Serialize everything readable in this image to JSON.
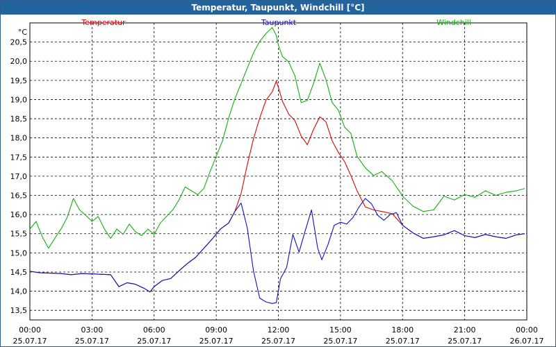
{
  "window": {
    "title": "Temperatur, Taupunkt, Windchill [°C]"
  },
  "chart_data": {
    "type": "line",
    "title": "Temperatur, Taupunkt, Windchill [°C]",
    "ylabel": "°C",
    "ylim": [
      13.25,
      21.0
    ],
    "yticks": [
      "13,5",
      "14,0",
      "14,5",
      "15,0",
      "15,5",
      "16,0",
      "16,5",
      "17,0",
      "17,5",
      "18,0",
      "18,5",
      "19,0",
      "19,5",
      "20,0",
      "20,5"
    ],
    "ytick_values": [
      13.5,
      14.0,
      14.5,
      15.0,
      15.5,
      16.0,
      16.5,
      17.0,
      17.5,
      18.0,
      18.5,
      19.0,
      19.5,
      20.0,
      20.5
    ],
    "xlim": [
      0,
      24
    ],
    "xtick_times": [
      "00:00",
      "03:00",
      "06:00",
      "09:00",
      "12:00",
      "15:00",
      "18:00",
      "21:00",
      "00:00"
    ],
    "xtick_dates": [
      "25.07.17",
      "25.07.17",
      "25.07.17",
      "25.07.17",
      "25.07.17",
      "25.07.17",
      "25.07.17",
      "25.07.17",
      "26.07.17"
    ],
    "xtick_values": [
      0,
      3,
      6,
      9,
      12,
      15,
      18,
      21,
      24
    ],
    "grid": true,
    "legend_position": "top",
    "series": [
      {
        "name": "Temperatur",
        "color": "#e00000",
        "x": [
          0,
          0.5,
          1,
          1.5,
          2,
          2.5,
          3,
          3.5,
          3.9,
          4.3,
          4.7,
          5.1,
          5.5,
          5.8,
          6.0,
          6.4,
          6.8,
          7.2,
          7.6,
          8.0,
          8.4,
          8.8,
          9.2,
          9.6,
          9.9,
          10.2,
          10.5,
          10.8,
          11.1,
          11.4,
          11.7,
          11.9,
          12.0,
          12.2,
          12.5,
          12.8,
          13.1,
          13.4,
          13.7,
          14.0,
          14.3,
          14.6,
          14.9,
          15.2,
          15.5,
          15.8,
          16.2,
          16.6,
          17.0,
          17.5,
          18.0,
          18.5,
          19.0,
          19.5,
          20.0,
          20.5,
          21.0,
          21.5,
          22.0,
          22.5,
          23.0,
          23.5,
          23.9
        ],
        "values": [
          14.52,
          14.48,
          14.47,
          14.46,
          14.43,
          14.46,
          14.45,
          14.44,
          14.43,
          14.12,
          14.22,
          14.18,
          14.08,
          13.98,
          14.12,
          14.28,
          14.33,
          14.53,
          14.72,
          14.88,
          15.12,
          15.36,
          15.62,
          15.78,
          16.08,
          16.55,
          17.3,
          17.98,
          18.52,
          18.98,
          19.2,
          19.48,
          19.32,
          18.95,
          18.62,
          18.45,
          18.05,
          17.82,
          18.22,
          18.55,
          18.42,
          17.92,
          17.62,
          17.38,
          17.02,
          16.62,
          16.2,
          16.12,
          16.08,
          16.02,
          15.72,
          15.52,
          15.38,
          15.42,
          15.47,
          15.58,
          15.45,
          15.4,
          15.48,
          15.42,
          15.38,
          15.47,
          15.5
        ]
      },
      {
        "name": "Taupunkt",
        "color": "#1010c0",
        "x": [
          0,
          0.5,
          1,
          1.5,
          2,
          2.5,
          3,
          3.5,
          3.9,
          4.3,
          4.7,
          5.1,
          5.5,
          5.8,
          6.0,
          6.4,
          6.8,
          7.2,
          7.6,
          8.0,
          8.4,
          8.8,
          9.2,
          9.6,
          9.9,
          10.2,
          10.5,
          10.8,
          11.1,
          11.4,
          11.7,
          11.9,
          12.1,
          12.4,
          12.7,
          13.0,
          13.3,
          13.6,
          13.9,
          14.1,
          14.4,
          14.7,
          15.0,
          15.3,
          15.6,
          15.9,
          16.2,
          16.5,
          16.8,
          17.1,
          17.4,
          17.7,
          18.0,
          18.5,
          19.0,
          19.5,
          20.0,
          20.5,
          21.0,
          21.5,
          22.0,
          22.5,
          23.0,
          23.5,
          23.9
        ],
        "values": [
          14.52,
          14.48,
          14.47,
          14.46,
          14.43,
          14.46,
          14.45,
          14.44,
          14.43,
          14.12,
          14.22,
          14.18,
          14.08,
          13.98,
          14.12,
          14.28,
          14.33,
          14.53,
          14.72,
          14.88,
          15.12,
          15.36,
          15.62,
          15.78,
          16.08,
          16.3,
          15.65,
          14.52,
          13.82,
          13.72,
          13.68,
          13.7,
          14.32,
          14.62,
          15.48,
          15.02,
          15.58,
          16.12,
          15.12,
          14.82,
          15.22,
          15.72,
          15.8,
          15.75,
          15.92,
          16.2,
          16.42,
          16.28,
          15.98,
          15.85,
          16.0,
          16.05,
          15.72,
          15.52,
          15.38,
          15.42,
          15.47,
          15.58,
          15.45,
          15.4,
          15.48,
          15.42,
          15.38,
          15.47,
          15.5
        ]
      },
      {
        "name": "Windchill",
        "color": "#10b010",
        "x": [
          0,
          0.3,
          0.6,
          0.9,
          1.2,
          1.5,
          1.8,
          2.1,
          2.4,
          2.7,
          3.0,
          3.3,
          3.6,
          3.9,
          4.2,
          4.5,
          4.8,
          5.1,
          5.4,
          5.7,
          6.0,
          6.3,
          6.6,
          6.9,
          7.2,
          7.5,
          7.8,
          8.1,
          8.4,
          8.7,
          9.0,
          9.3,
          9.6,
          9.9,
          10.2,
          10.5,
          10.8,
          11.1,
          11.4,
          11.7,
          11.9,
          12.0,
          12.2,
          12.5,
          12.8,
          13.1,
          13.4,
          13.7,
          14.0,
          14.3,
          14.6,
          14.9,
          15.2,
          15.5,
          15.8,
          16.2,
          16.6,
          17.0,
          17.5,
          18.0,
          18.5,
          19.0,
          19.5,
          20.0,
          20.5,
          21.0,
          21.5,
          22.0,
          22.5,
          23.0,
          23.5,
          23.9
        ],
        "values": [
          15.62,
          15.82,
          15.42,
          15.12,
          15.38,
          15.62,
          15.92,
          16.42,
          16.12,
          15.98,
          15.82,
          15.95,
          15.62,
          15.38,
          15.62,
          15.48,
          15.75,
          15.55,
          15.45,
          15.62,
          15.48,
          15.78,
          15.95,
          16.12,
          16.38,
          16.72,
          16.62,
          16.52,
          16.68,
          17.12,
          17.52,
          17.92,
          18.52,
          19.02,
          19.42,
          19.82,
          20.22,
          20.52,
          20.72,
          20.88,
          20.68,
          20.42,
          20.12,
          19.98,
          19.62,
          18.92,
          18.98,
          19.42,
          19.95,
          19.52,
          18.92,
          18.72,
          18.28,
          18.12,
          17.52,
          17.22,
          17.02,
          17.12,
          16.88,
          16.48,
          16.22,
          16.08,
          16.12,
          16.48,
          16.38,
          16.52,
          16.45,
          16.62,
          16.5,
          16.58,
          16.62,
          16.68
        ]
      }
    ]
  }
}
